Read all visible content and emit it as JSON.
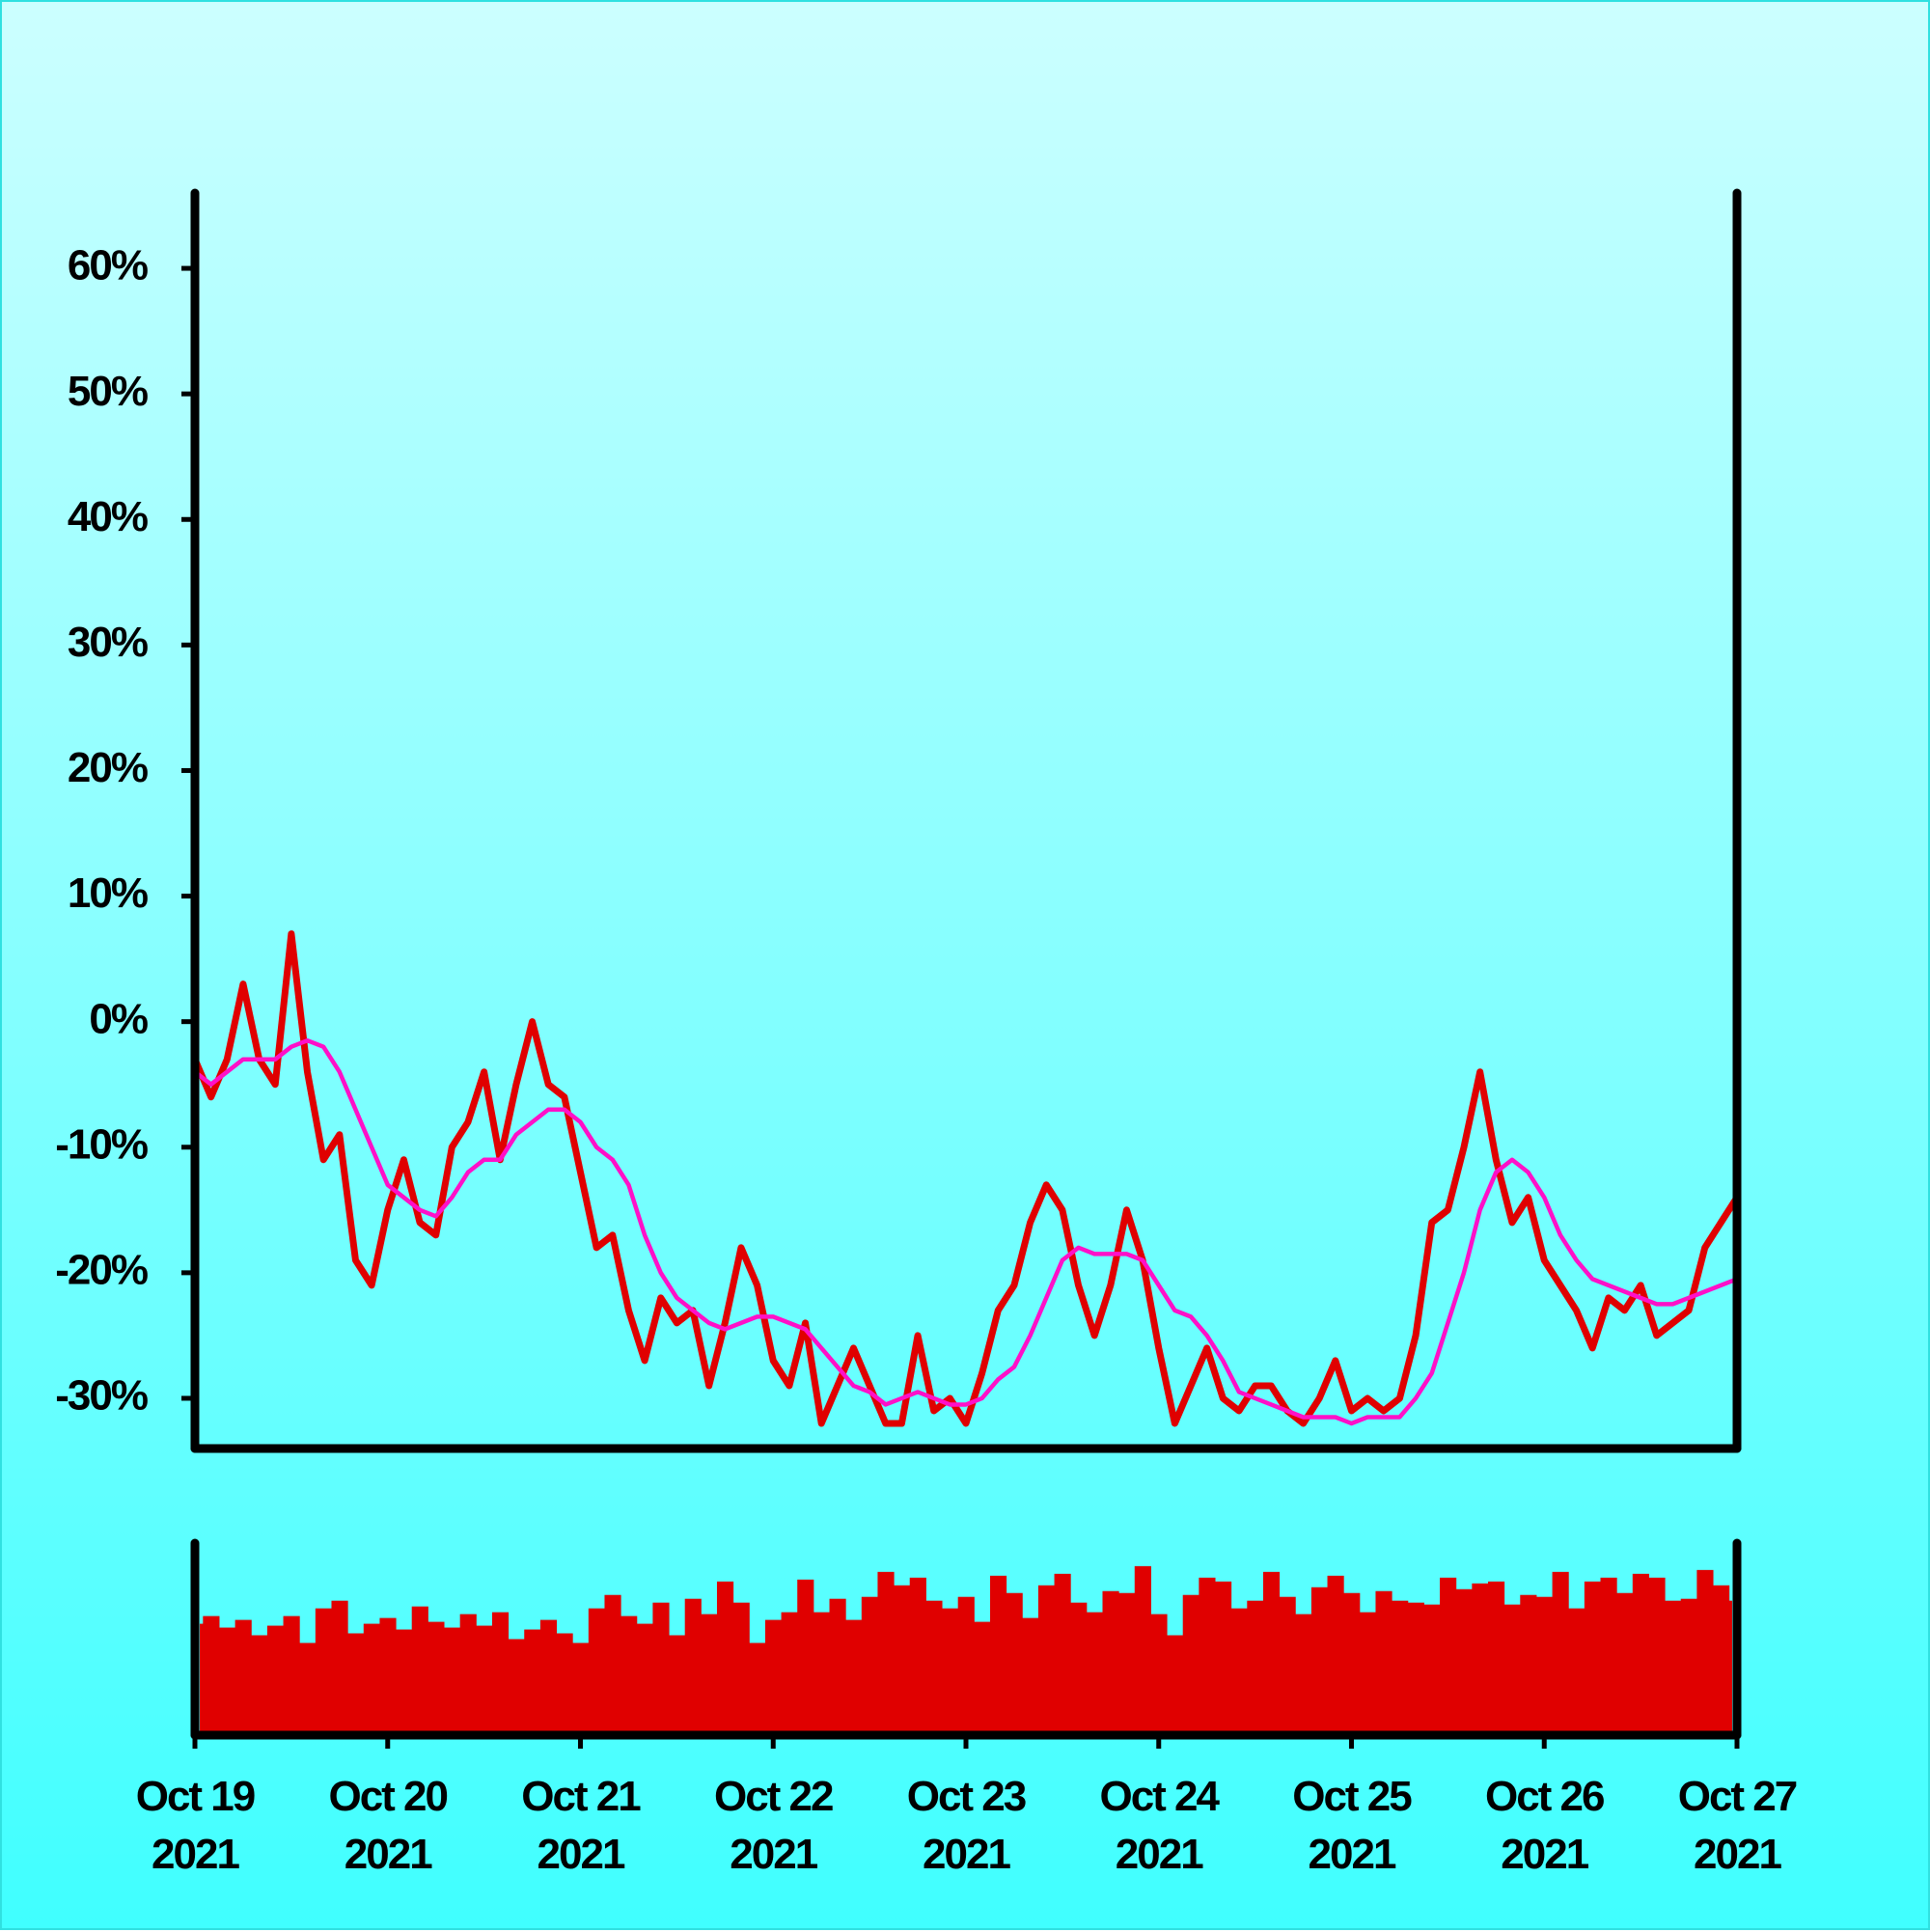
{
  "chart_data": [
    {
      "type": "line",
      "x": [
        0,
        2,
        4,
        6,
        8,
        10,
        12,
        14,
        16,
        18,
        20,
        22,
        24,
        26,
        28,
        30,
        32,
        34,
        36,
        38,
        40,
        42,
        44,
        46,
        48,
        50,
        52,
        54,
        56,
        58,
        60,
        62,
        64,
        66,
        68,
        70,
        72,
        74,
        76,
        78,
        80,
        82,
        84,
        86,
        88,
        90,
        92,
        94,
        96,
        98,
        100,
        102,
        104,
        106,
        108,
        110,
        112,
        114,
        116,
        118,
        120,
        122,
        124,
        126,
        128,
        130,
        132,
        134,
        136,
        138,
        140,
        142,
        144,
        146,
        148,
        150,
        152,
        154,
        156,
        158,
        160,
        162,
        164,
        166,
        168,
        170,
        172,
        174,
        176,
        178,
        180,
        182,
        184,
        186,
        188,
        190,
        192
      ],
      "series": [
        {
          "color": "#e00000",
          "values": [
            -3,
            -6,
            -3,
            3,
            -3,
            -5,
            7,
            -4,
            -11,
            -9,
            -19,
            -21,
            -15,
            -11,
            -16,
            -17,
            -10,
            -8,
            -4,
            -11,
            -5,
            0,
            -5,
            -6,
            -12,
            -18,
            -17,
            -23,
            -27,
            -22,
            -24,
            -23,
            -29,
            -24,
            -18,
            -21,
            -27,
            -29,
            -24,
            -32,
            -29,
            -26,
            -29,
            -32,
            -32,
            -25,
            -31,
            -30,
            -32,
            -28,
            -23,
            -21,
            -16,
            -13,
            -15,
            -21,
            -25,
            -21,
            -15,
            -19,
            -26,
            -32,
            -29,
            -26,
            -30,
            -31,
            -29,
            -29,
            -31,
            -32,
            -30,
            -27,
            -31,
            -30,
            -31,
            -30,
            -25,
            -16,
            -15,
            -10,
            -4,
            -11,
            -16,
            -14,
            -19,
            -21,
            -23,
            -26,
            -22,
            -23,
            -21,
            -25,
            -24,
            -23,
            -18,
            -16,
            -14
          ]
        },
        {
          "color": "#ff10c8",
          "values": [
            -4,
            -5,
            -4,
            -3,
            -3,
            -3,
            -2,
            -1.5,
            -2,
            -4,
            -7,
            -10,
            -13,
            -14,
            -15,
            -15.5,
            -14,
            -12,
            -11,
            -11,
            -9,
            -8,
            -7,
            -7,
            -8,
            -10,
            -11,
            -13,
            -17,
            -20,
            -22,
            -23,
            -24,
            -24.5,
            -24,
            -23.5,
            -23.5,
            -24,
            -24.5,
            -26,
            -27.5,
            -29,
            -29.5,
            -30.5,
            -30,
            -29.5,
            -30,
            -30.5,
            -30.5,
            -30,
            -28.5,
            -27.5,
            -25,
            -22,
            -19,
            -18,
            -18.5,
            -18.5,
            -18.5,
            -19,
            -21,
            -23,
            -23.5,
            -25,
            -27,
            -29.5,
            -30,
            -30.5,
            -31,
            -31.5,
            -31.5,
            -31.5,
            -32,
            -31.5,
            -31.5,
            -31.5,
            -30,
            -28,
            -24,
            -20,
            -15,
            -12,
            -11,
            -12,
            -14,
            -17,
            -19,
            -20.5,
            -21,
            -21.5,
            -22,
            -22.5,
            -22.5,
            -22,
            -21.5,
            -21,
            -20.5
          ]
        }
      ],
      "xlim": [
        0,
        192
      ],
      "ylim": [
        -34,
        66
      ],
      "yticks": [
        {
          "value": -30,
          "label": "-30%"
        },
        {
          "value": -20,
          "label": "-20%"
        },
        {
          "value": -10,
          "label": "-10%"
        },
        {
          "value": 0,
          "label": "0%"
        },
        {
          "value": 10,
          "label": "10%"
        },
        {
          "value": 20,
          "label": "20%"
        },
        {
          "value": 30,
          "label": "30%"
        },
        {
          "value": 40,
          "label": "40%"
        },
        {
          "value": 50,
          "label": "50%"
        },
        {
          "value": 60,
          "label": "60%"
        }
      ]
    },
    {
      "type": "bar",
      "x": [
        0,
        2,
        4,
        6,
        8,
        10,
        12,
        14,
        16,
        18,
        20,
        22,
        24,
        26,
        28,
        30,
        32,
        34,
        36,
        38,
        40,
        42,
        44,
        46,
        48,
        50,
        52,
        54,
        56,
        58,
        60,
        62,
        64,
        66,
        68,
        70,
        72,
        74,
        76,
        78,
        80,
        82,
        84,
        86,
        88,
        90,
        92,
        94,
        96,
        98,
        100,
        102,
        104,
        106,
        108,
        110,
        112,
        114,
        116,
        118,
        120,
        122,
        124,
        126,
        128,
        130,
        132,
        134,
        136,
        138,
        140,
        142,
        144,
        146,
        148,
        150,
        152,
        154,
        156,
        158,
        160,
        162,
        164,
        166,
        168,
        170,
        172,
        174,
        176,
        178,
        180,
        182,
        184,
        186,
        188,
        190,
        192
      ],
      "values": [
        58,
        62,
        56,
        60,
        52,
        57,
        62,
        48,
        66,
        70,
        53,
        58,
        61,
        55,
        67,
        59,
        56,
        63,
        57,
        64,
        50,
        55,
        60,
        53,
        48,
        66,
        73,
        62,
        58,
        69,
        52,
        71,
        63,
        80,
        69,
        48,
        60,
        64,
        81,
        64,
        71,
        60,
        72,
        85,
        78,
        82,
        70,
        66,
        72,
        59,
        83,
        74,
        61,
        78,
        84,
        69,
        64,
        75,
        74,
        88,
        63,
        52,
        73,
        82,
        80,
        66,
        70,
        85,
        72,
        63,
        77,
        83,
        74,
        64,
        75,
        70,
        69,
        68,
        82,
        76,
        79,
        80,
        68,
        73,
        72,
        85,
        66,
        80,
        82,
        74,
        84,
        82,
        70,
        71,
        86,
        78,
        70
      ],
      "color": "#e00000",
      "xlim": [
        0,
        192
      ],
      "ylim": [
        0,
        100
      ],
      "xticks": [
        {
          "value": 0,
          "label": "Oct 19 2021"
        },
        {
          "value": 24,
          "label": "Oct 20 2021"
        },
        {
          "value": 48,
          "label": "Oct 21 2021"
        },
        {
          "value": 72,
          "label": "Oct 22 2021"
        },
        {
          "value": 96,
          "label": "Oct 23 2021"
        },
        {
          "value": 120,
          "label": "Oct 24 2021"
        },
        {
          "value": 144,
          "label": "Oct 25 2021"
        },
        {
          "value": 168,
          "label": "Oct 26 2021"
        },
        {
          "value": 192,
          "label": "Oct 27 2021"
        }
      ]
    }
  ]
}
